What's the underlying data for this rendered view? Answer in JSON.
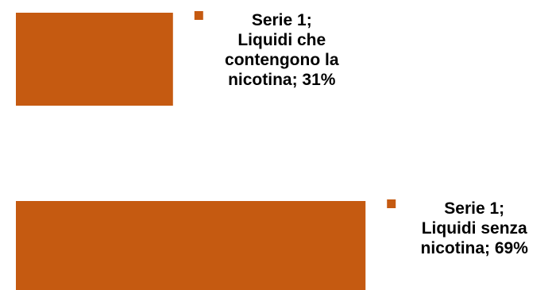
{
  "chart_data": {
    "type": "bar",
    "orientation": "horizontal",
    "categories": [
      "Liquidi che contengono la nicotina",
      "Liquidi senza nicotina"
    ],
    "series": [
      {
        "name": "Serie 1",
        "values": [
          0.31,
          0.69
        ]
      }
    ],
    "data_labels": [
      [
        "Serie 1;",
        "Liquidi che",
        "contengono la",
        "nicotina; 31%"
      ],
      [
        "Serie 1;",
        "Liquidi senza",
        "nicotina; 69%"
      ]
    ],
    "xlim": [
      0,
      1
    ],
    "grid": false,
    "bar_color": "#C55A11",
    "marker_color": "#C55A11"
  }
}
